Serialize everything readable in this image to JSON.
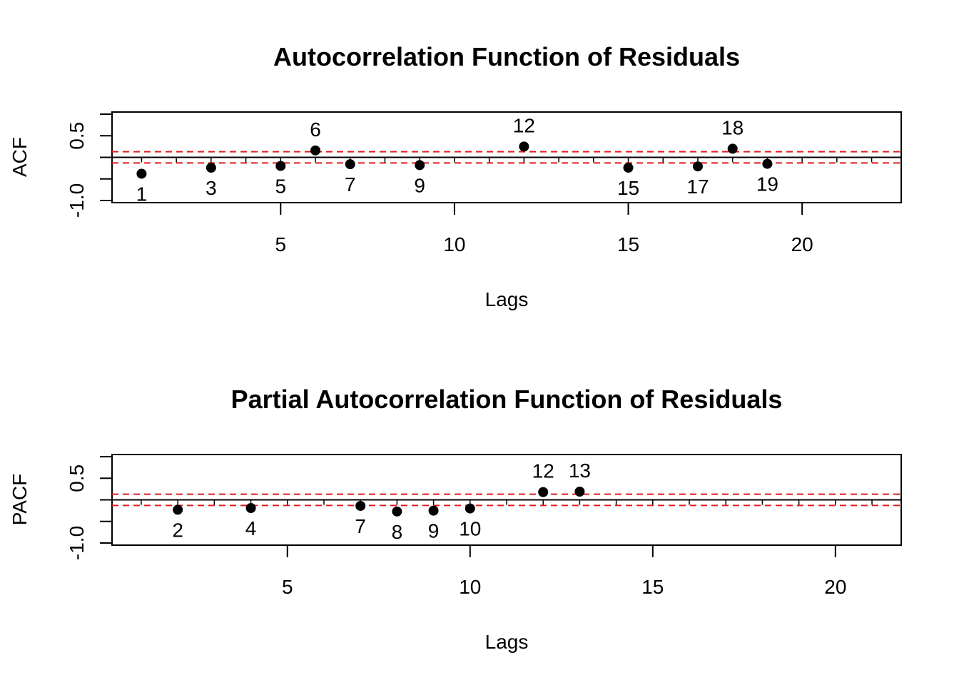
{
  "colors": {
    "points": "#000000",
    "significance_lines": "#e41a1c",
    "zero_line": "#000000",
    "frame": "#000000"
  },
  "chart_data": [
    {
      "type": "scatter",
      "title": "Autocorrelation Function of Residuals",
      "xlabel": "Lags",
      "ylabel": "ACF",
      "xlim": [
        0.15,
        22.85
      ],
      "ylim": [
        -1.05,
        1.05
      ],
      "x_ticks": [
        5,
        10,
        15,
        20
      ],
      "y_ticks": [
        -1.0,
        0.5
      ],
      "y_tick_labels": [
        "-1.0",
        "0.5"
      ],
      "significance_bounds": [
        0.13,
        -0.13
      ],
      "grid": false,
      "points": [
        {
          "lag": 1,
          "value": -0.38,
          "label": "1",
          "label_pos": "below"
        },
        {
          "lag": 3,
          "value": -0.24,
          "label": "3",
          "label_pos": "below"
        },
        {
          "lag": 5,
          "value": -0.2,
          "label": "5",
          "label_pos": "below"
        },
        {
          "lag": 6,
          "value": 0.16,
          "label": "6",
          "label_pos": "above"
        },
        {
          "lag": 7,
          "value": -0.16,
          "label": "7",
          "label_pos": "below"
        },
        {
          "lag": 9,
          "value": -0.18,
          "label": "9",
          "label_pos": "below"
        },
        {
          "lag": 12,
          "value": 0.25,
          "label": "12",
          "label_pos": "above"
        },
        {
          "lag": 15,
          "value": -0.24,
          "label": "15",
          "label_pos": "below"
        },
        {
          "lag": 17,
          "value": -0.21,
          "label": "17",
          "label_pos": "below"
        },
        {
          "lag": 18,
          "value": 0.2,
          "label": "18",
          "label_pos": "above"
        },
        {
          "lag": 19,
          "value": -0.15,
          "label": "19",
          "label_pos": "below"
        }
      ]
    },
    {
      "type": "scatter",
      "title": "Partial Autocorrelation Function of Residuals",
      "xlabel": "Lags",
      "ylabel": "PACF",
      "xlim": [
        0.2,
        21.8
      ],
      "ylim": [
        -1.05,
        1.05
      ],
      "x_ticks": [
        5,
        10,
        15,
        20
      ],
      "y_ticks": [
        -1.0,
        0.5
      ],
      "y_tick_labels": [
        "-1.0",
        "0.5"
      ],
      "significance_bounds": [
        0.13,
        -0.13
      ],
      "grid": false,
      "points": [
        {
          "lag": 2,
          "value": -0.23,
          "label": "2",
          "label_pos": "below"
        },
        {
          "lag": 4,
          "value": -0.19,
          "label": "4",
          "label_pos": "below"
        },
        {
          "lag": 7,
          "value": -0.14,
          "label": "7",
          "label_pos": "below"
        },
        {
          "lag": 8,
          "value": -0.27,
          "label": "8",
          "label_pos": "below"
        },
        {
          "lag": 9,
          "value": -0.25,
          "label": "9",
          "label_pos": "below"
        },
        {
          "lag": 10,
          "value": -0.2,
          "label": "10",
          "label_pos": "below"
        },
        {
          "lag": 12,
          "value": 0.18,
          "label": "12",
          "label_pos": "above"
        },
        {
          "lag": 13,
          "value": 0.19,
          "label": "13",
          "label_pos": "above"
        }
      ]
    }
  ]
}
